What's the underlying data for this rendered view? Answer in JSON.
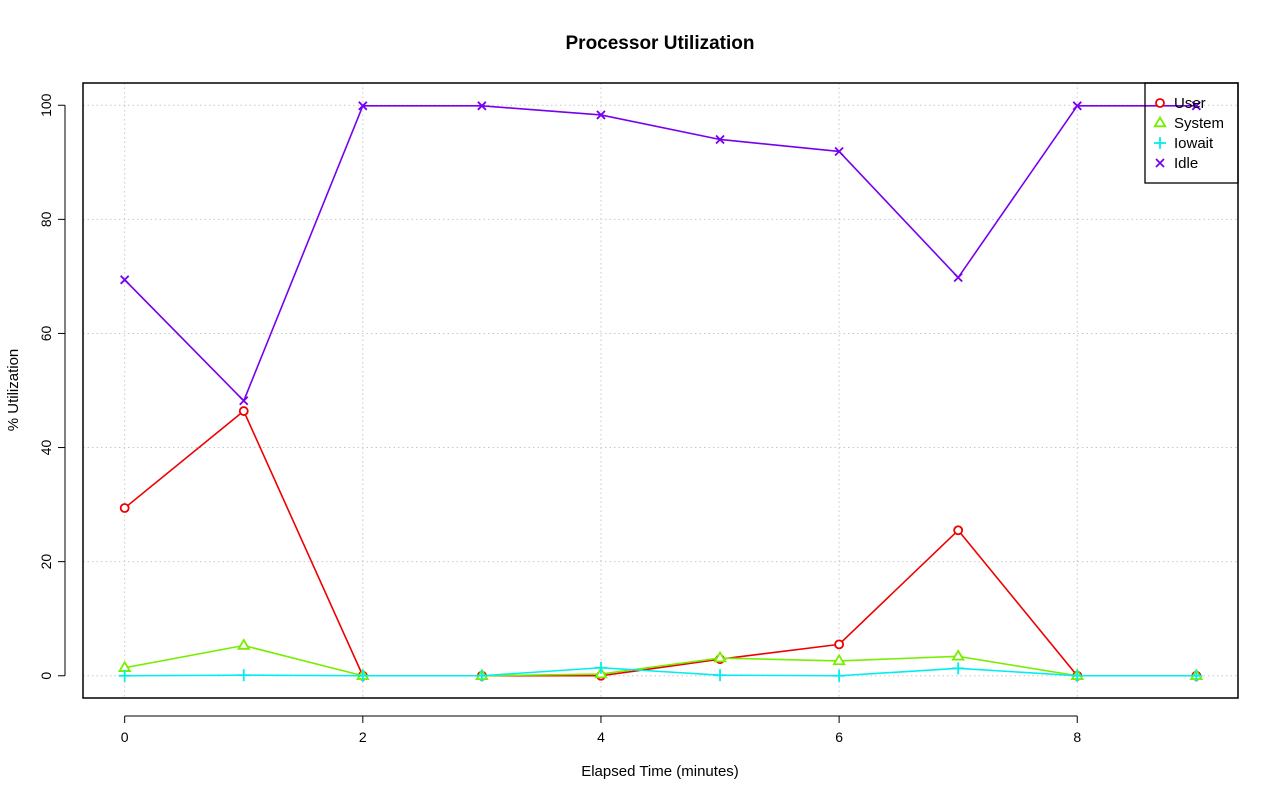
{
  "chart_data": {
    "type": "line",
    "title": "Processor Utilization",
    "xlabel": "Elapsed Time (minutes)",
    "ylabel": "% Utilization",
    "x": [
      0,
      1,
      2,
      3,
      4,
      5,
      6,
      7,
      8,
      9
    ],
    "xlim": [
      -0.35,
      9.35
    ],
    "ylim": [
      -3.9,
      103.9
    ],
    "xticks": [
      0,
      2,
      4,
      6,
      8
    ],
    "yticks": [
      0,
      20,
      40,
      60,
      80,
      100
    ],
    "grid": true,
    "legend_position": "top-right",
    "series": [
      {
        "name": "User",
        "color": "#ee0000",
        "marker": "circle",
        "values": [
          29.4,
          46.4,
          0,
          0,
          0,
          2.9,
          5.5,
          25.5,
          0,
          0
        ]
      },
      {
        "name": "System",
        "color": "#77ee00",
        "marker": "triangle",
        "values": [
          1.4,
          5.3,
          0,
          0,
          0.3,
          3.1,
          2.6,
          3.4,
          0,
          0
        ]
      },
      {
        "name": "Iowait",
        "color": "#00eeee",
        "marker": "plus",
        "values": [
          0,
          0.1,
          0,
          0,
          1.4,
          0.1,
          0,
          1.3,
          0,
          0
        ]
      },
      {
        "name": "Idle",
        "color": "#7700ee",
        "marker": "cross",
        "values": [
          69.4,
          48.2,
          99.9,
          99.9,
          98.3,
          94.0,
          91.9,
          69.8,
          99.9,
          99.9
        ]
      }
    ]
  }
}
